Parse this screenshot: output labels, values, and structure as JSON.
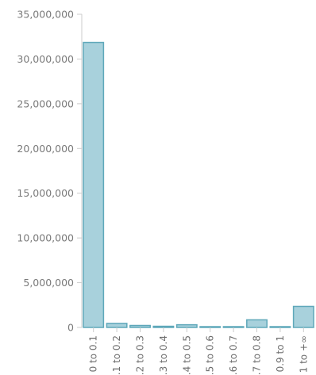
{
  "chart_data": {
    "type": "bar",
    "title": "",
    "xlabel": "",
    "ylabel": "",
    "ylim": [
      0,
      35000000
    ],
    "yticks": [
      0,
      5000000,
      10000000,
      15000000,
      20000000,
      25000000,
      30000000,
      35000000
    ],
    "ytick_labels": [
      "0",
      "5,000,000",
      "10,000,000",
      "15,000,000",
      "20,000,000",
      "25,000,000",
      "30,000,000",
      "35,000,000"
    ],
    "categories": [
      "0 to 0.1",
      ".1 to 0.2",
      ".2 to 0.3",
      ".3 to 0.4",
      ".4 to 0.5",
      ".5 to 0.6",
      ".6 to 0.7",
      ".7 to 0.8",
      "0.9 to 1",
      "1 to +∞"
    ],
    "values": [
      31850000,
      450000,
      220000,
      130000,
      300000,
      80000,
      40000,
      850000,
      60000,
      2350000
    ],
    "grid": false,
    "legend": "none",
    "colors": {
      "bar_fill": "#a8d1dc",
      "bar_stroke": "#5fa8ba",
      "axis": "#cccccc",
      "tick_text": "#7a7a7a"
    }
  }
}
